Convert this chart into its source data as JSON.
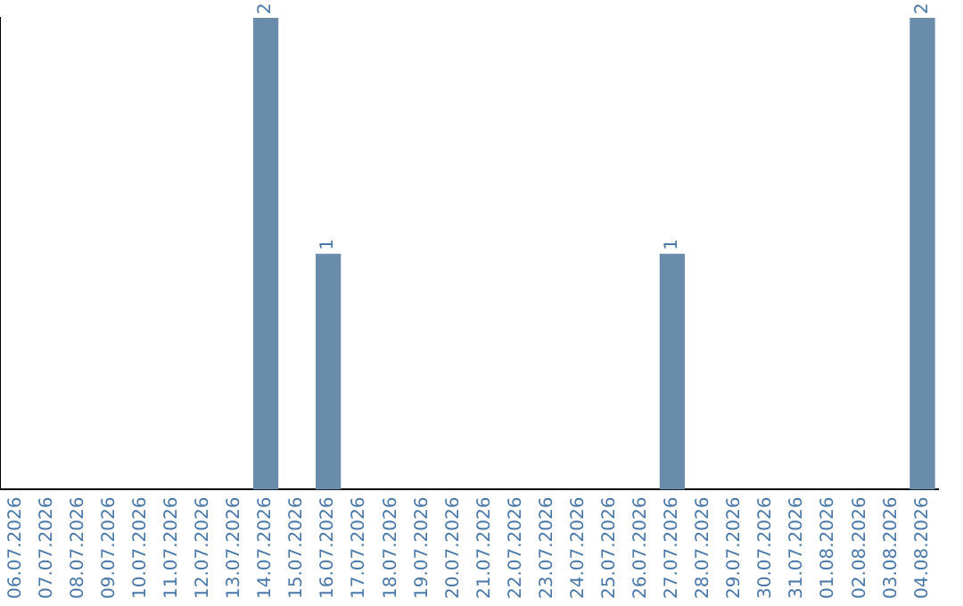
{
  "chart_data": {
    "type": "bar",
    "categories": [
      "06.07.2026",
      "07.07.2026",
      "08.07.2026",
      "09.07.2026",
      "10.07.2026",
      "11.07.2026",
      "12.07.2026",
      "13.07.2026",
      "14.07.2026",
      "15.07.2026",
      "16.07.2026",
      "17.07.2026",
      "18.07.2026",
      "19.07.2026",
      "20.07.2026",
      "21.07.2026",
      "22.07.2026",
      "23.07.2026",
      "24.07.2026",
      "25.07.2026",
      "26.07.2026",
      "27.07.2026",
      "28.07.2026",
      "29.07.2026",
      "30.07.2026",
      "31.07.2026",
      "01.08.2026",
      "02.08.2026",
      "03.08.2026",
      "04.08.2026"
    ],
    "values": [
      0,
      0,
      0,
      0,
      0,
      0,
      0,
      0,
      2,
      0,
      1,
      0,
      0,
      0,
      0,
      0,
      0,
      0,
      0,
      0,
      0,
      1,
      0,
      0,
      0,
      0,
      0,
      0,
      0,
      2
    ],
    "value_labels": [
      null,
      null,
      null,
      null,
      null,
      null,
      null,
      null,
      "2",
      null,
      "1",
      null,
      null,
      null,
      null,
      null,
      null,
      null,
      null,
      null,
      null,
      "1",
      null,
      null,
      null,
      null,
      null,
      null,
      null,
      "2"
    ],
    "color": "#6a8cab",
    "grid": false,
    "legend": false,
    "tick_labels": "x"
  }
}
